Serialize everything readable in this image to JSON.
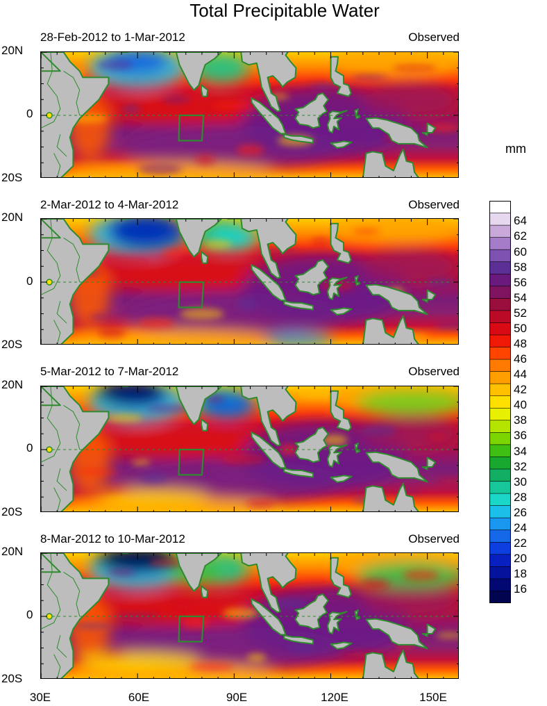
{
  "title": "Total Precipitable Water",
  "unit_label": "mm",
  "y_ticks": [
    "20N",
    "0",
    "20S"
  ],
  "x_ticks": [
    "30E",
    "60E",
    "90E",
    "120E",
    "150E"
  ],
  "panels": [
    {
      "date_range": "28-Feb-2012 to 1-Mar-2012",
      "tag": "Observed"
    },
    {
      "date_range": "2-Mar-2012 to 4-Mar-2012",
      "tag": "Observed"
    },
    {
      "date_range": "5-Mar-2012 to 7-Mar-2012",
      "tag": "Observed"
    },
    {
      "date_range": "8-Mar-2012 to 10-Mar-2012",
      "tag": "Observed"
    }
  ],
  "colorbar_labels": [
    "64",
    "62",
    "60",
    "58",
    "56",
    "54",
    "52",
    "50",
    "48",
    "46",
    "44",
    "42",
    "40",
    "38",
    "36",
    "34",
    "32",
    "30",
    "28",
    "26",
    "24",
    "22",
    "20",
    "18",
    "16"
  ],
  "colorbar_colors": [
    "#ffffff",
    "#e6d8ee",
    "#c9a9d9",
    "#a57cc8",
    "#7e52b0",
    "#5b2f95",
    "#6a1a7d",
    "#7e1460",
    "#9a0e3e",
    "#bb0a28",
    "#da0a14",
    "#f01806",
    "#ff4400",
    "#ff7a00",
    "#ff9e00",
    "#ffc000",
    "#ffe000",
    "#e6f000",
    "#b4e400",
    "#7cd400",
    "#3fbe14",
    "#18a830",
    "#11ae64",
    "#17c79a",
    "#1ad7c8",
    "#1bbfe8",
    "#1996ee",
    "#1568e8",
    "#0d3ee0",
    "#0820c0",
    "#04129c",
    "#020872",
    "#010550"
  ]
}
